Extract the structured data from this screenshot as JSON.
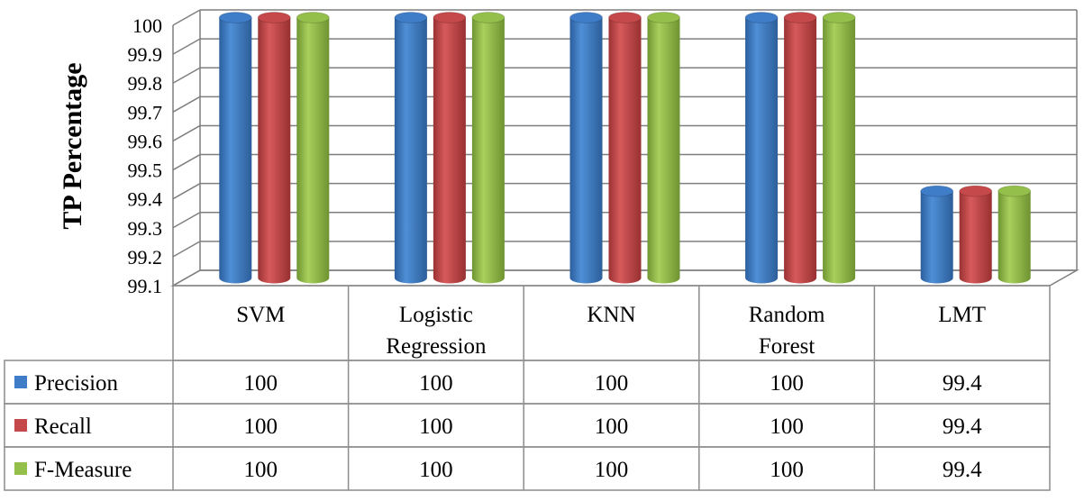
{
  "chart_data": {
    "type": "bar",
    "style": "3d-cylinder",
    "title": "",
    "xlabel": "",
    "ylabel": "TP Percentage",
    "ylim": [
      99.1,
      100
    ],
    "yticks": [
      "99.1",
      "99.2",
      "99.3",
      "99.4",
      "99.5",
      "99.6",
      "99.7",
      "99.8",
      "99.9",
      "100"
    ],
    "categories": [
      [
        "SVM"
      ],
      [
        "Logistic",
        "Regression"
      ],
      [
        "KNN"
      ],
      [
        "Random",
        "Forest"
      ],
      [
        "LMT"
      ]
    ],
    "series": [
      {
        "name": "Precision",
        "color": "#3f7dc8",
        "values": [
          100,
          100,
          100,
          100,
          99.4
        ],
        "labels": [
          "100",
          "100",
          "100",
          "100",
          "99.4"
        ]
      },
      {
        "name": "Recall",
        "color": "#c5494a",
        "values": [
          100,
          100,
          100,
          100,
          99.4
        ],
        "labels": [
          "100",
          "100",
          "100",
          "100",
          "99.4"
        ]
      },
      {
        "name": "F-Measure",
        "color": "#94bf4b",
        "values": [
          100,
          100,
          100,
          100,
          99.4
        ],
        "labels": [
          "100",
          "100",
          "100",
          "100",
          "99.4"
        ]
      }
    ],
    "grid": true,
    "data_table": true,
    "legend": "in data table"
  }
}
